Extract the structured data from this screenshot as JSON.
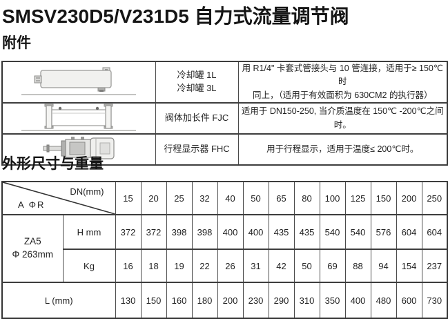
{
  "page": {
    "title": "SMSV230D5/V231D5 自力式流量调节阀",
    "sections": {
      "accessories": "附件",
      "dimensions": "外形尺寸与重量"
    }
  },
  "accessories_table": {
    "rows": [
      {
        "icon": "cooling-tank-drawing",
        "name_lines": [
          "冷却罐 1L",
          "冷却罐 3L"
        ],
        "desc_lines": [
          "用 R1/4\" 卡套式管接头与 10 管连接，适用于≥ 150℃时",
          "同上，（适用于有效面积为 630CM2 的执行器）"
        ]
      },
      {
        "icon": "valve-body-extension-drawing",
        "name_lines": [
          "阀体加长件 FJC"
        ],
        "desc_lines": [
          "适用于 DN150-250, 当介质温度在 150℃ -200℃之间 时。"
        ]
      },
      {
        "icon": "travel-indicator-drawing",
        "name_lines": [
          "行程显示器 FHC"
        ],
        "desc_lines": [
          "用于行程显示，适用于温度≤ 200℃时。"
        ]
      }
    ]
  },
  "dimensions_table": {
    "corner_top_right": "DN(mm)",
    "corner_bottom_left": "A ΦR",
    "dn_values": [
      "15",
      "20",
      "25",
      "32",
      "40",
      "50",
      "65",
      "80",
      "100",
      "125",
      "150",
      "200",
      "250"
    ],
    "group_label_lines": [
      "ZA5",
      "Φ 263mm"
    ],
    "rows": [
      {
        "label": "H mm",
        "values": [
          372,
          372,
          398,
          398,
          400,
          400,
          435,
          435,
          540,
          540,
          576,
          604,
          604
        ]
      },
      {
        "label": "Kg",
        "values": [
          16,
          18,
          19,
          22,
          26,
          31,
          42,
          50,
          69,
          88,
          94,
          154,
          237
        ]
      }
    ],
    "l_row": {
      "label": "L (mm)",
      "values": [
        130,
        150,
        160,
        180,
        200,
        230,
        290,
        310,
        350,
        400,
        480,
        600,
        730
      ]
    }
  }
}
